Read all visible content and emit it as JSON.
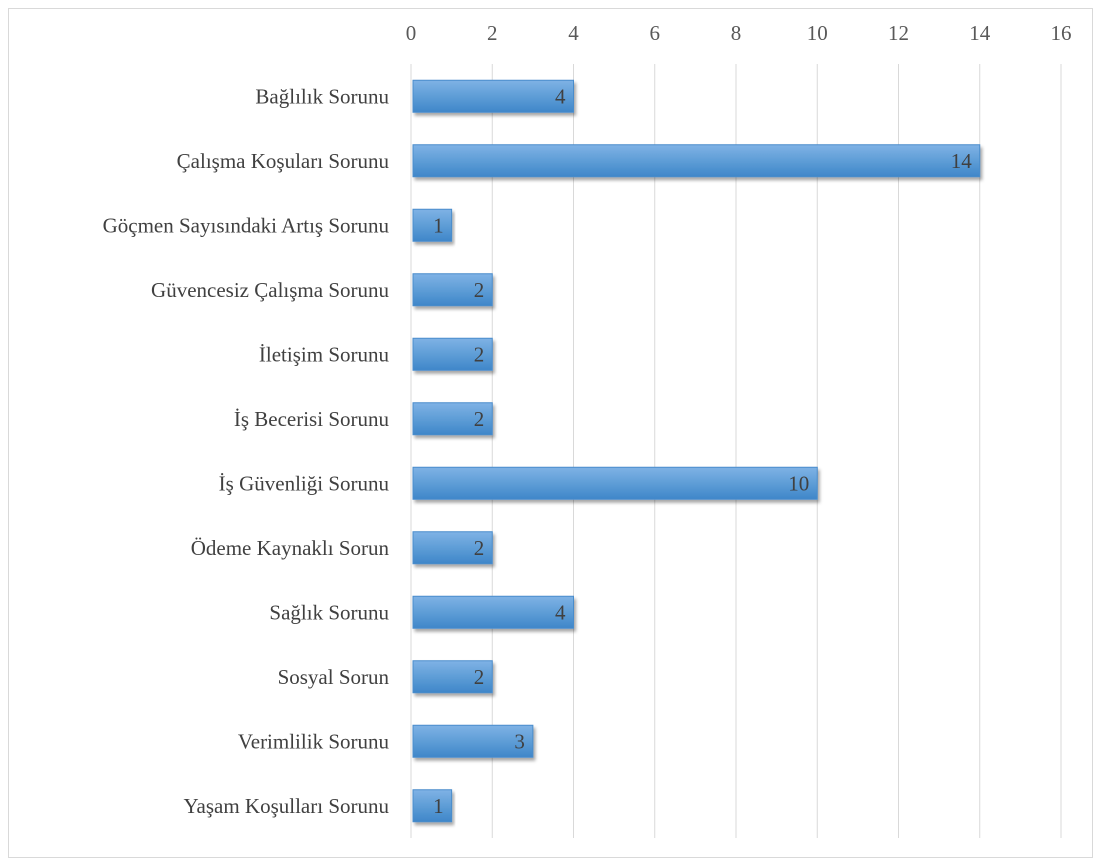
{
  "chart_data": {
    "type": "bar",
    "orientation": "horizontal",
    "categories": [
      "Bağlılık Sorunu",
      "Çalışma Koşuları Sorunu",
      "Göçmen Sayısındaki Artış Sorunu",
      "Güvencesiz Çalışma Sorunu",
      "İletişim Sorunu",
      "İş Becerisi Sorunu",
      "İş Güvenliği Sorunu",
      "Ödeme Kaynaklı Sorun",
      "Sağlık Sorunu",
      "Sosyal Sorun",
      "Verimlilik Sorunu",
      "Yaşam Koşulları Sorunu"
    ],
    "values": [
      4,
      14,
      1,
      2,
      2,
      2,
      10,
      2,
      4,
      2,
      3,
      1
    ],
    "title": "",
    "xlabel": "",
    "ylabel": "",
    "xlim": [
      0,
      16
    ],
    "ticks": [
      0,
      2,
      4,
      6,
      8,
      10,
      12,
      14,
      16
    ],
    "axis_position": "top",
    "grid": true,
    "data_labels": true,
    "bar_color": "#5b9bd5",
    "gridline_color": "#d9d9d9"
  }
}
